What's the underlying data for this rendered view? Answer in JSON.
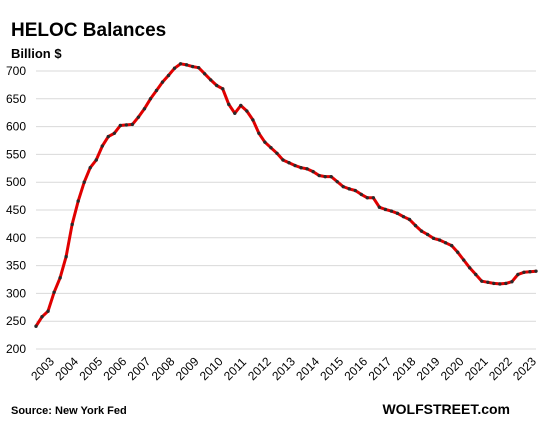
{
  "chart_data": {
    "type": "line",
    "title": "HELOC Balances",
    "ylabel": "Billion $",
    "source": "Source: New York Fed",
    "brand": "WOLFSTREET.com",
    "ylim": [
      200,
      700
    ],
    "yticks": [
      200,
      250,
      300,
      350,
      400,
      450,
      500,
      550,
      600,
      650,
      700
    ],
    "xlim": [
      2003.0,
      2023.75
    ],
    "xticks": [
      "2003",
      "2004",
      "2005",
      "2006",
      "2007",
      "2008",
      "2009",
      "2010",
      "2011",
      "2012",
      "2013",
      "2014",
      "2015",
      "2016",
      "2017",
      "2018",
      "2019",
      "2020",
      "2021",
      "2022",
      "2023"
    ],
    "grid": true,
    "colors": {
      "line": "#e00000",
      "marker": "#2a2a2a",
      "grid": "#d9d9d9"
    },
    "series": [
      {
        "x": [
          2003.0,
          2003.25,
          2003.5,
          2003.75,
          2004.0,
          2004.25,
          2004.5,
          2004.75,
          2005.0,
          2005.25,
          2005.5,
          2005.75,
          2006.0,
          2006.25,
          2006.5,
          2006.75,
          2007.0,
          2007.25,
          2007.5,
          2007.75,
          2008.0,
          2008.25,
          2008.5,
          2008.75,
          2009.0,
          2009.25,
          2009.5,
          2009.75,
          2010.0,
          2010.25,
          2010.5,
          2010.75,
          2011.0,
          2011.25,
          2011.5,
          2011.75,
          2012.0,
          2012.25,
          2012.5,
          2012.75,
          2013.0,
          2013.25,
          2013.5,
          2013.75,
          2014.0,
          2014.25,
          2014.5,
          2014.75,
          2015.0,
          2015.25,
          2015.5,
          2015.75,
          2016.0,
          2016.25,
          2016.5,
          2016.75,
          2017.0,
          2017.25,
          2017.5,
          2017.75,
          2018.0,
          2018.25,
          2018.5,
          2018.75,
          2019.0,
          2019.25,
          2019.5,
          2019.75,
          2020.0,
          2020.25,
          2020.5,
          2020.75,
          2021.0,
          2021.25,
          2021.5,
          2021.75,
          2022.0,
          2022.25,
          2022.5,
          2022.75,
          2023.0,
          2023.25,
          2023.5,
          2023.75
        ],
        "values": [
          241,
          258,
          268,
          302,
          328,
          366,
          424,
          466,
          500,
          526,
          540,
          565,
          582,
          588,
          602,
          603,
          604,
          617,
          632,
          650,
          665,
          680,
          692,
          705,
          713,
          711,
          708,
          706,
          695,
          684,
          674,
          668,
          640,
          624,
          638,
          628,
          612,
          588,
          572,
          562,
          552,
          540,
          535,
          530,
          526,
          524,
          519,
          512,
          510,
          510,
          501,
          492,
          488,
          485,
          478,
          472,
          472,
          455,
          451,
          448,
          444,
          438,
          433,
          422,
          412,
          406,
          399,
          396,
          391,
          386,
          374,
          360,
          346,
          334,
          322,
          320,
          318,
          317,
          318,
          321,
          334,
          338,
          339,
          340
        ]
      }
    ]
  }
}
